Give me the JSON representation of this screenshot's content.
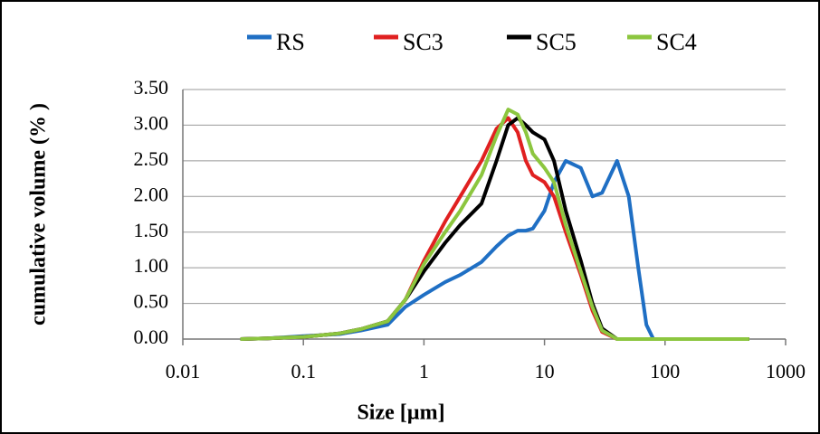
{
  "chart_data": {
    "type": "line",
    "xlabel": "Size [µm]",
    "ylabel": "cumulative volume (% )",
    "xscale": "log",
    "xlim": [
      0.01,
      1000
    ],
    "xticks": [
      0.01,
      0.1,
      1,
      10,
      100,
      1000
    ],
    "ylim": [
      0,
      3.5
    ],
    "yticks": [
      {
        "value": 0,
        "label": "0.00"
      },
      {
        "value": 0.5,
        "label": "0.50"
      },
      {
        "value": 1,
        "label": "1.00"
      },
      {
        "value": 1.5,
        "label": "1.50"
      },
      {
        "value": 2,
        "label": "2.00"
      },
      {
        "value": 2.5,
        "label": "2.50"
      },
      {
        "value": 3,
        "label": "3.00"
      },
      {
        "value": 3.5,
        "label": "3.50"
      }
    ],
    "grid": true,
    "legend": "top",
    "x": [
      0.03,
      0.05,
      0.1,
      0.2,
      0.3,
      0.5,
      0.7,
      1,
      1.5,
      2,
      3,
      4,
      5,
      6,
      7,
      8,
      10,
      12,
      15,
      20,
      25,
      30,
      40,
      50,
      60,
      70,
      80,
      100,
      200,
      500
    ],
    "series": [
      {
        "name": "RS",
        "color": "#1f6fc4",
        "values": [
          0,
          0.01,
          0.04,
          0.07,
          0.12,
          0.2,
          0.45,
          0.62,
          0.8,
          0.9,
          1.08,
          1.3,
          1.45,
          1.52,
          1.52,
          1.55,
          1.8,
          2.2,
          2.5,
          2.4,
          2.0,
          2.05,
          2.5,
          2.0,
          1.0,
          0.2,
          0,
          0,
          0,
          0
        ]
      },
      {
        "name": "SC3",
        "color": "#e02020",
        "values": [
          0,
          0.01,
          0.03,
          0.08,
          0.14,
          0.25,
          0.55,
          1.1,
          1.65,
          2.0,
          2.5,
          2.95,
          3.1,
          2.9,
          2.5,
          2.3,
          2.2,
          2.0,
          1.5,
          0.9,
          0.4,
          0.1,
          0,
          0,
          0,
          0,
          0,
          0,
          0,
          0
        ]
      },
      {
        "name": "SC5",
        "color": "#000000",
        "values": [
          0,
          0.01,
          0.03,
          0.08,
          0.14,
          0.25,
          0.55,
          0.95,
          1.35,
          1.6,
          1.9,
          2.5,
          3.0,
          3.1,
          3.0,
          2.9,
          2.8,
          2.5,
          1.8,
          1.1,
          0.5,
          0.15,
          0,
          0,
          0,
          0,
          0,
          0,
          0,
          0
        ]
      },
      {
        "name": "SC4",
        "color": "#8cc63f",
        "values": [
          0,
          0.01,
          0.03,
          0.08,
          0.14,
          0.25,
          0.55,
          1.05,
          1.5,
          1.8,
          2.3,
          2.85,
          3.22,
          3.15,
          2.9,
          2.6,
          2.4,
          2.2,
          1.6,
          0.95,
          0.45,
          0.12,
          0,
          0,
          0,
          0,
          0,
          0,
          0,
          0
        ]
      }
    ]
  }
}
